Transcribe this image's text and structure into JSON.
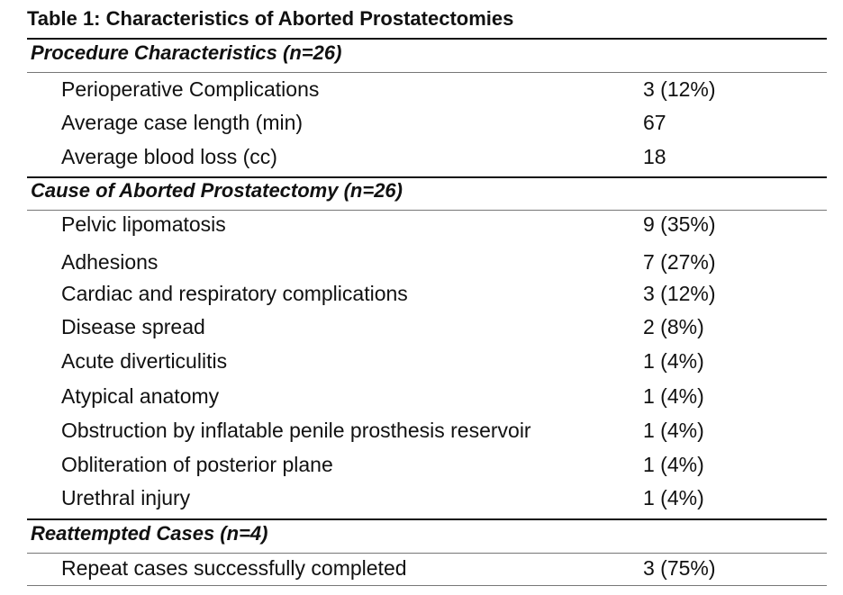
{
  "title": "Table 1: Characteristics of Aborted Prostatectomies",
  "sections": [
    {
      "heading": "Procedure Characteristics (n=26)",
      "rows": [
        {
          "label": "Perioperative Complications",
          "value": "3 (12%)"
        },
        {
          "label": "Average case length (min)",
          "value": "67"
        },
        {
          "label": "Average blood loss (cc)",
          "value": "18"
        }
      ]
    },
    {
      "heading": "Cause of Aborted Prostatectomy (n=26)",
      "rows": [
        {
          "label": "Pelvic lipomatosis",
          "value": "9 (35%)"
        },
        {
          "label": "Adhesions",
          "value": "7 (27%)"
        },
        {
          "label": "Cardiac and respiratory complications",
          "value": "3 (12%)"
        },
        {
          "label": "Disease spread",
          "value": "2 (8%)"
        },
        {
          "label": "Acute diverticulitis",
          "value": "1 (4%)"
        },
        {
          "label": "Atypical anatomy",
          "value": "1 (4%)"
        },
        {
          "label": "Obstruction by inflatable penile prosthesis reservoir",
          "value": "1 (4%)"
        },
        {
          "label": "Obliteration of posterior plane",
          "value": "1 (4%)"
        },
        {
          "label": "Urethral injury",
          "value": "1 (4%)"
        }
      ]
    },
    {
      "heading": "Reattempted Cases (n=4)",
      "rows": [
        {
          "label": "Repeat cases successfully completed",
          "value": "3 (75%)"
        }
      ]
    }
  ]
}
